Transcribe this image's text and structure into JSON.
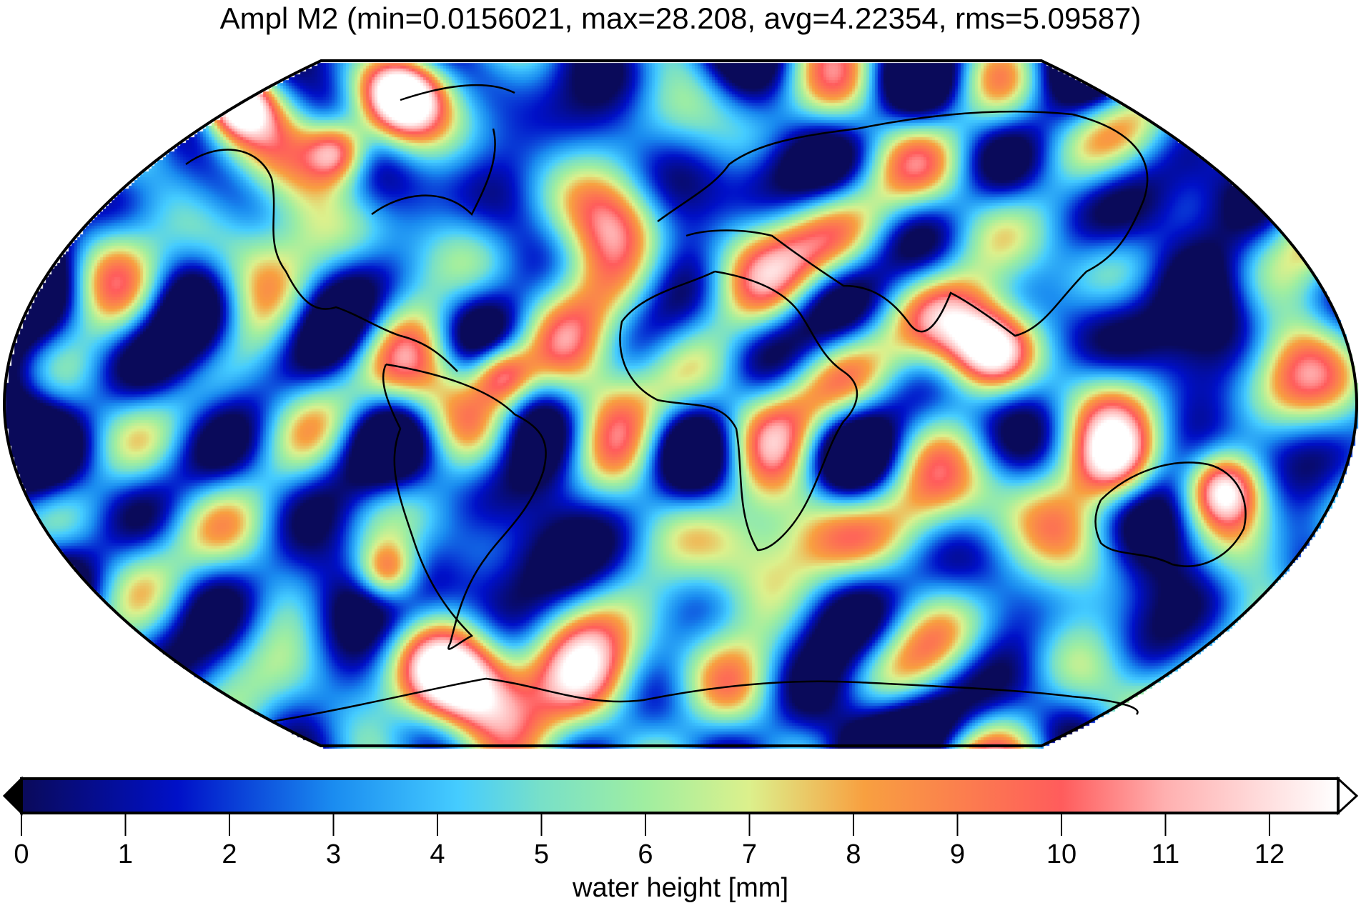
{
  "chart_data": {
    "type": "heatmap",
    "title": "Ampl M2 (min=0.0156021, max=28.208, avg=4.22354, rms=5.09587)",
    "projection": "Robinson world map",
    "coastlines": true,
    "colorbar": {
      "label": "water height [mm]",
      "range": [
        0,
        12.66
      ],
      "ticks": [
        0,
        1,
        2,
        3,
        4,
        5,
        6,
        7,
        8,
        9,
        10,
        11,
        12
      ],
      "tick_labels": [
        "0",
        "1",
        "2",
        "3",
        "4",
        "5",
        "6",
        "7",
        "8",
        "9",
        "10",
        "11",
        "12"
      ],
      "extend": "both",
      "colors": [
        {
          "value": 0,
          "color": "#0a0a5a"
        },
        {
          "value": 1.5,
          "color": "#0010c8"
        },
        {
          "value": 3,
          "color": "#1a8cf0"
        },
        {
          "value": 4.2,
          "color": "#45ccff"
        },
        {
          "value": 5,
          "color": "#78e0c8"
        },
        {
          "value": 6,
          "color": "#a0eea0"
        },
        {
          "value": 7,
          "color": "#dcf08c"
        },
        {
          "value": 8.1,
          "color": "#f8a040"
        },
        {
          "value": 10,
          "color": "#ff5c5c"
        },
        {
          "value": 11,
          "color": "#ffb0b0"
        },
        {
          "value": 12.66,
          "color": "#ffffff"
        }
      ]
    }
  }
}
